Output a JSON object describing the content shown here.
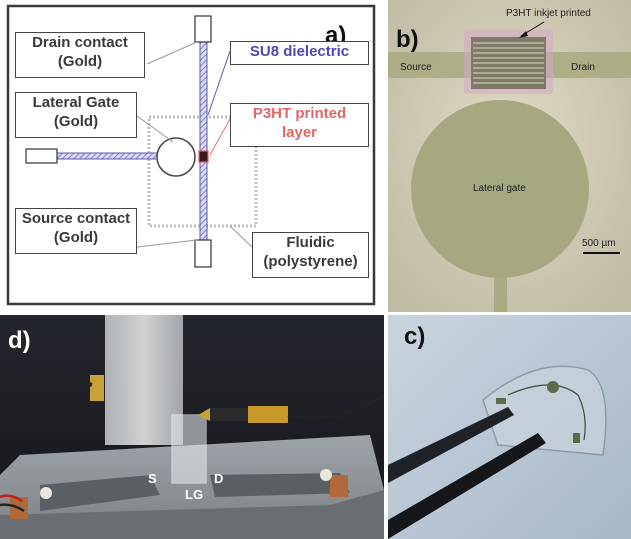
{
  "panel_a": {
    "letter": "a)",
    "labels": {
      "drain": [
        "Drain contact",
        "(Gold)"
      ],
      "gate": [
        "Lateral Gate",
        "(Gold)"
      ],
      "source": [
        "Source contact",
        "(Gold)"
      ],
      "su8": "SU8 dielectric",
      "p3ht": [
        "P3HT printed",
        "layer"
      ],
      "fluidic": [
        "Fluidic",
        "(polystyrene)"
      ]
    },
    "colors": {
      "su8": "#4a4ab0",
      "p3ht": "#e87070",
      "frame": "#3a3a3a"
    }
  },
  "panel_b": {
    "letter": "b)",
    "p3ht": "P3HT inkjet printed",
    "source": "Source",
    "drain": "Drain",
    "gate": "Lateral gate",
    "scale": "500 µm"
  },
  "panel_c": {
    "letter": "c)"
  },
  "panel_d": {
    "letter": "d)",
    "s": "S",
    "lg": "LG",
    "d": "D"
  }
}
